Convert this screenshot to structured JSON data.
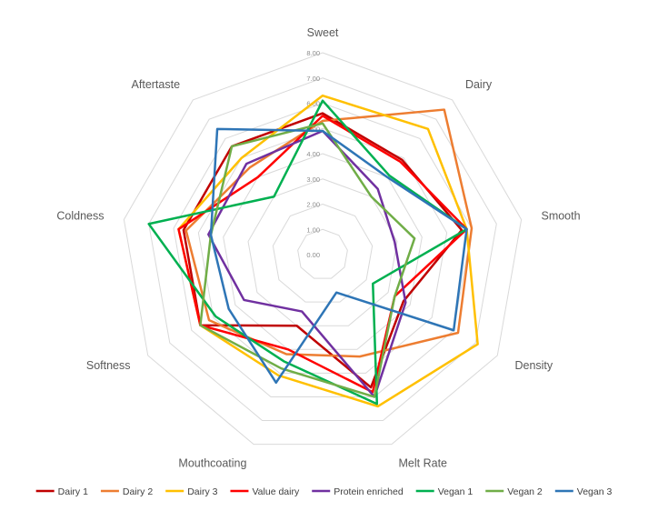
{
  "chart_data": {
    "type": "radar",
    "title": "",
    "axes": [
      "Sweet",
      "Dairy",
      "Smooth",
      "Density",
      "Melt Rate",
      "Mouthcoating",
      "Softness",
      "Coldness",
      "Aftertaste"
    ],
    "range": [
      0,
      8
    ],
    "ticks": [
      "0.00",
      "1.00",
      "2.00",
      "3.00",
      "4.00",
      "5.00",
      "6.00",
      "7.00",
      "8.00"
    ],
    "grid": true,
    "legend_position": "bottom",
    "series": [
      {
        "name": "Dairy 1",
        "color": "#c00000",
        "values": [
          5.6,
          4.9,
          5.6,
          3.7,
          5.6,
          3.0,
          5.6,
          5.6,
          5.6
        ]
      },
      {
        "name": "Dairy 2",
        "color": "#ed7d31",
        "values": [
          5.3,
          7.5,
          6.0,
          6.2,
          4.3,
          4.2,
          5.2,
          5.5,
          4.5
        ]
      },
      {
        "name": "Dairy 3",
        "color": "#ffc000",
        "values": [
          6.3,
          6.5,
          5.8,
          7.1,
          6.4,
          5.1,
          5.6,
          5.8,
          5.0
        ]
      },
      {
        "name": "Value dairy",
        "color": "#ff0000",
        "values": [
          5.5,
          4.8,
          5.8,
          3.3,
          5.8,
          4.0,
          5.6,
          5.8,
          4.0
        ]
      },
      {
        "name": "Protein enriched",
        "color": "#7030a0",
        "values": [
          4.9,
          3.4,
          2.9,
          3.8,
          6.0,
          2.4,
          3.6,
          4.6,
          4.7
        ]
      },
      {
        "name": "Vegan 1",
        "color": "#00b050",
        "values": [
          6.1,
          4.1,
          5.8,
          2.3,
          6.3,
          4.5,
          4.9,
          7.0,
          3.0
        ]
      },
      {
        "name": "Vegan 2",
        "color": "#70ad47",
        "values": [
          5.2,
          3.0,
          3.7,
          3.3,
          6.0,
          4.8,
          5.6,
          4.5,
          5.6
        ]
      },
      {
        "name": "Vegan 3",
        "color": "#2e75b6",
        "values": [
          4.9,
          4.0,
          5.8,
          6.0,
          1.6,
          5.4,
          4.3,
          4.5,
          6.5
        ]
      }
    ]
  }
}
